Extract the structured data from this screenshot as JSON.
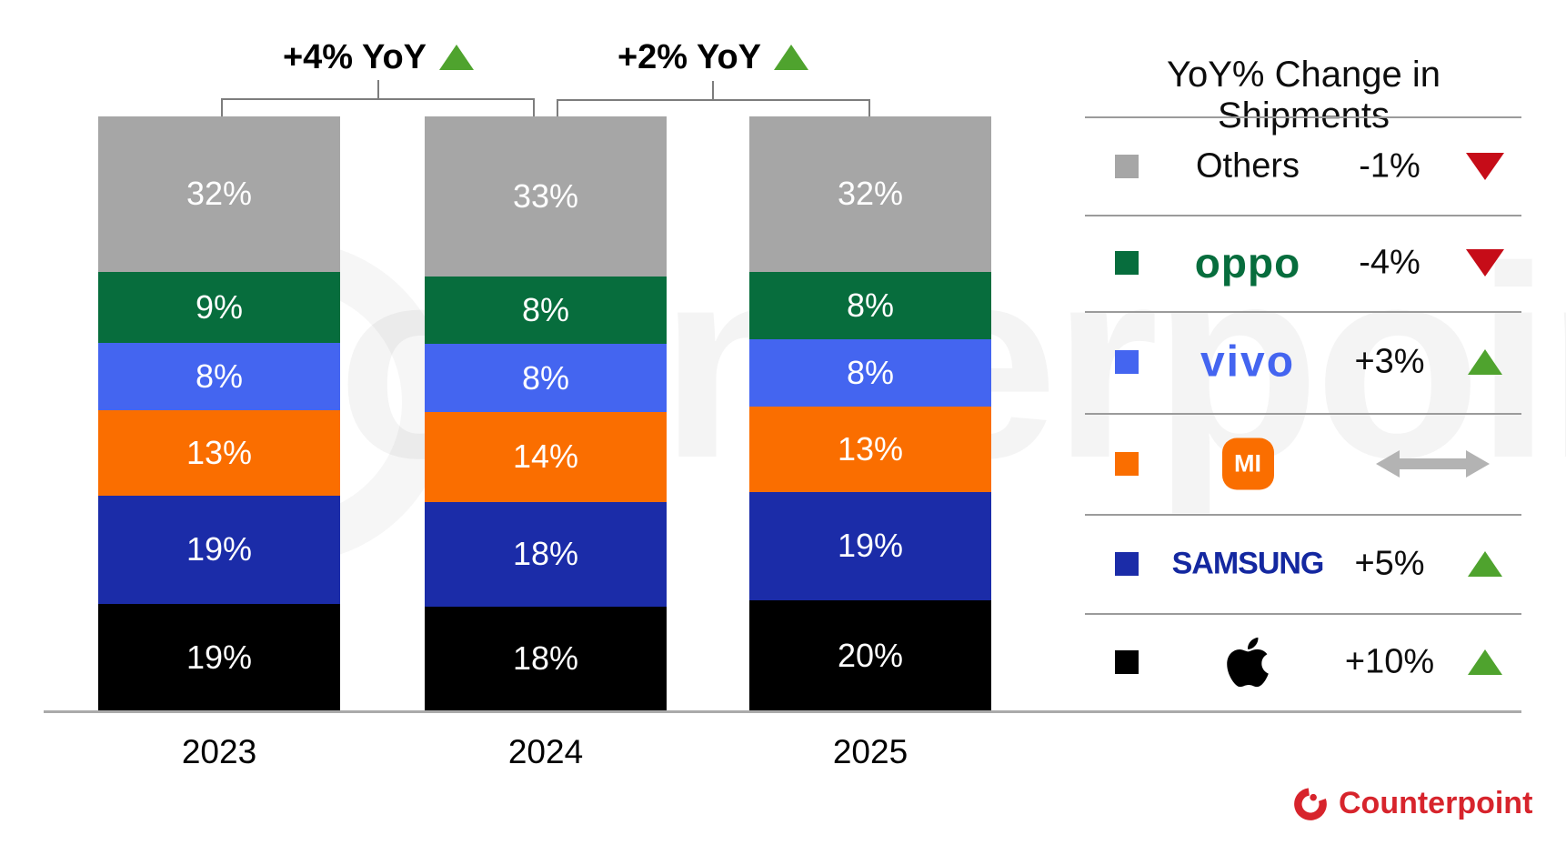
{
  "chart_data": {
    "type": "bar",
    "stacked": true,
    "unit": "%",
    "categories": [
      "2023",
      "2024",
      "2025"
    ],
    "series": [
      {
        "name": "Apple",
        "color": "#000000",
        "values": [
          19,
          18,
          20
        ]
      },
      {
        "name": "Samsung",
        "color": "#1b2ca8",
        "values": [
          19,
          18,
          19
        ]
      },
      {
        "name": "Xiaomi",
        "color": "#fa6e00",
        "values": [
          13,
          14,
          13
        ]
      },
      {
        "name": "vivo",
        "color": "#4465f0",
        "values": [
          8,
          8,
          8
        ]
      },
      {
        "name": "OPPO",
        "color": "#076d3d",
        "values": [
          9,
          8,
          8
        ]
      },
      {
        "name": "Others",
        "color": "#a6a6a6",
        "values": [
          32,
          33,
          32
        ]
      }
    ],
    "annotations": [
      {
        "label": "+4% YoY",
        "direction": "up",
        "between": [
          "2023",
          "2024"
        ]
      },
      {
        "label": "+2% YoY",
        "direction": "up",
        "between": [
          "2024",
          "2025"
        ]
      }
    ],
    "legend_position": "right",
    "grid": false
  },
  "legend": {
    "title": "YoY% Change in Shipments",
    "rows": [
      {
        "brand": "Others",
        "logo_text": "Others",
        "change": "-1%",
        "direction": "down"
      },
      {
        "brand": "OPPO",
        "logo_text": "oppo",
        "change": "-4%",
        "direction": "down"
      },
      {
        "brand": "vivo",
        "logo_text": "vivo",
        "change": "+3%",
        "direction": "up"
      },
      {
        "brand": "Xiaomi",
        "logo_text": "MI",
        "change": "",
        "direction": "flat"
      },
      {
        "brand": "Samsung",
        "logo_text": "SAMSUNG",
        "change": "+5%",
        "direction": "up"
      },
      {
        "brand": "Apple",
        "logo_text": "",
        "change": "+10%",
        "direction": "up"
      }
    ]
  },
  "colors": {
    "trend_up": "#4fa32e",
    "trend_down": "#c60c18",
    "flat_arrow": "#b3b3b3",
    "brand_red": "#d7242c",
    "axis_line": "#aaaaaa"
  },
  "watermark": "counterpoint",
  "footer": {
    "brand": "Counterpoint"
  }
}
